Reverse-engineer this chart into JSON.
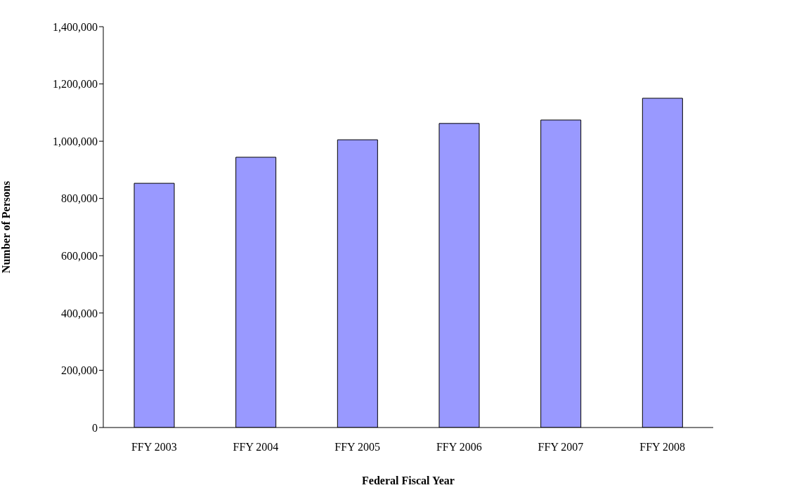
{
  "chart_data": {
    "type": "bar",
    "xlabel": "Federal Fiscal Year",
    "ylabel": "Number of Persons",
    "categories": [
      "FFY 2003",
      "FFY 2004",
      "FFY 2005",
      "FFY 2006",
      "FFY 2007",
      "FFY 2008"
    ],
    "values": [
      853000,
      944000,
      1005000,
      1062000,
      1074000,
      1150000
    ],
    "color": "#9999ff",
    "ylim": [
      0,
      1400000
    ],
    "yticks": [
      0,
      {
        "value": 200000,
        "label": "200,000"
      },
      {
        "value": 400000,
        "label": "400,000"
      },
      {
        "value": 600000,
        "label": "600,000"
      },
      {
        "value": 800000,
        "label": "800,000"
      },
      {
        "value": 1000000,
        "label": "1,000,000"
      },
      {
        "value": 1200000,
        "label": "1,200,000"
      },
      {
        "value": 1400000,
        "label": "1,400,000"
      }
    ],
    "grid": false
  }
}
